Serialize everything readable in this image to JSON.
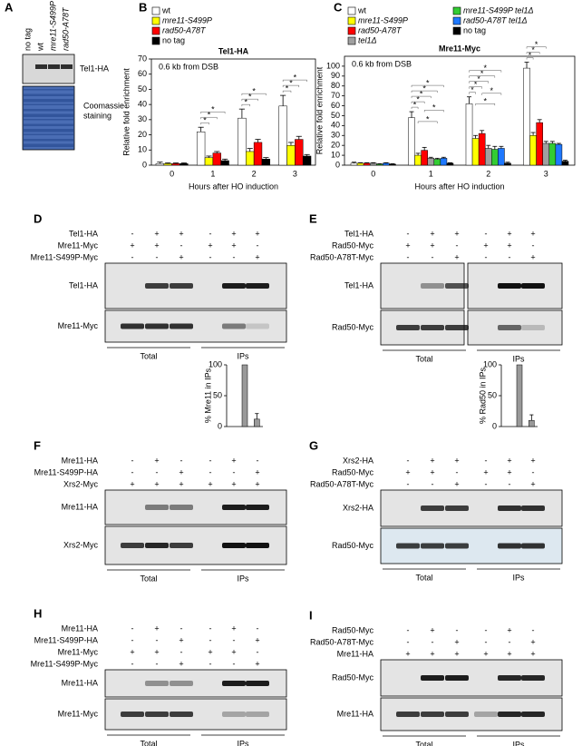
{
  "panel_A": {
    "label": "A",
    "lanes": [
      "no tag",
      "wt",
      "mre11-S499P",
      "rad50-A78T"
    ],
    "blot": "Tel1-HA",
    "stain": [
      "Coomassie",
      "staining"
    ]
  },
  "chart_data": [
    {
      "label": "B",
      "type": "bar",
      "title": "Tel1-HA",
      "annotation": "0.6 kb from DSB",
      "ylabel": "Relative fold enrichment",
      "xlabel": "Hours after HO induction",
      "categories": [
        "0",
        "1",
        "2",
        "3"
      ],
      "ylim": [
        0,
        70
      ],
      "yticks": [
        0,
        10,
        20,
        30,
        40,
        50,
        60,
        70
      ],
      "series": [
        {
          "name": "wt",
          "color": "#ffffff",
          "italic": false,
          "values": [
            1,
            22,
            31,
            39
          ],
          "errors": [
            1,
            3,
            6,
            7
          ]
        },
        {
          "name": "mre11-S499P",
          "color": "#ffff00",
          "italic": true,
          "values": [
            1,
            5,
            9,
            13
          ],
          "errors": [
            0.5,
            1,
            2,
            2
          ]
        },
        {
          "name": "rad50-A78T",
          "color": "#ff0000",
          "italic": true,
          "values": [
            1,
            8,
            15,
            17
          ],
          "errors": [
            0.5,
            1,
            2,
            2
          ]
        },
        {
          "name": "no tag",
          "color": "#000000",
          "italic": false,
          "values": [
            1,
            3,
            4,
            6
          ],
          "errors": [
            0.5,
            1,
            1,
            1
          ]
        }
      ],
      "significance": [
        {
          "category": 1,
          "pair": [
            0,
            1
          ],
          "label": "*"
        },
        {
          "category": 1,
          "pair": [
            0,
            2
          ],
          "label": "*"
        },
        {
          "category": 1,
          "pair": [
            0,
            3
          ],
          "label": "*"
        },
        {
          "category": 2,
          "pair": [
            0,
            1
          ],
          "label": "*"
        },
        {
          "category": 2,
          "pair": [
            0,
            2
          ],
          "label": "*"
        },
        {
          "category": 2,
          "pair": [
            0,
            3
          ],
          "label": "*"
        },
        {
          "category": 3,
          "pair": [
            0,
            1
          ],
          "label": "*"
        },
        {
          "category": 3,
          "pair": [
            0,
            2
          ],
          "label": "*"
        },
        {
          "category": 3,
          "pair": [
            0,
            3
          ],
          "label": "*"
        }
      ]
    },
    {
      "label": "C",
      "type": "bar",
      "title": "Mre11-Myc",
      "annotation": "0.6 kb from DSB",
      "ylabel": "Relative fold enrichment",
      "xlabel": "Hours after HO induction",
      "categories": [
        "0",
        "1",
        "2",
        "3"
      ],
      "ylim": [
        0,
        110
      ],
      "yticks": [
        0,
        10,
        20,
        30,
        40,
        50,
        60,
        70,
        80,
        90,
        100
      ],
      "series": [
        {
          "name": "wt",
          "color": "#ffffff",
          "italic": false,
          "values": [
            2,
            48,
            62,
            98
          ],
          "errors": [
            1,
            6,
            7,
            6
          ]
        },
        {
          "name": "mre11-S499P",
          "color": "#ffff00",
          "italic": true,
          "values": [
            2,
            10,
            27,
            30
          ],
          "errors": [
            0.5,
            2,
            3,
            3
          ]
        },
        {
          "name": "rad50-A78T",
          "color": "#ff0000",
          "italic": true,
          "values": [
            2,
            15,
            32,
            43
          ],
          "errors": [
            0.5,
            3,
            3,
            3
          ]
        },
        {
          "name": "tel1Δ",
          "color": "#a0a0a0",
          "italic": true,
          "values": [
            2,
            7,
            17,
            22
          ],
          "errors": [
            0.5,
            1,
            3,
            2
          ]
        },
        {
          "name": "mre11-S499P tel1Δ",
          "color": "#33cc33",
          "italic": true,
          "values": [
            1,
            6,
            16,
            22
          ],
          "errors": [
            0.5,
            1,
            3,
            2
          ]
        },
        {
          "name": "rad50-A78T tel1Δ",
          "color": "#1e78ff",
          "italic": true,
          "values": [
            2,
            7,
            17,
            21
          ],
          "errors": [
            0.5,
            1,
            2,
            1
          ]
        },
        {
          "name": "no tag",
          "color": "#000000",
          "italic": false,
          "values": [
            1,
            2,
            2,
            4
          ],
          "errors": [
            0.5,
            0.5,
            1,
            1
          ]
        }
      ],
      "significance": [
        {
          "category": 1,
          "pair": [
            0,
            1
          ],
          "label": "*"
        },
        {
          "category": 1,
          "pair": [
            0,
            2
          ],
          "label": "*"
        },
        {
          "category": 1,
          "pair": [
            0,
            3
          ],
          "label": "*"
        },
        {
          "category": 1,
          "pair": [
            0,
            4
          ],
          "label": "*"
        },
        {
          "category": 1,
          "pair": [
            0,
            5
          ],
          "label": "*"
        },
        {
          "category": 1,
          "pair": [
            1,
            4
          ],
          "label": "*"
        },
        {
          "category": 1,
          "pair": [
            2,
            5
          ],
          "label": "*"
        },
        {
          "category": 2,
          "pair": [
            0,
            1
          ],
          "label": "*"
        },
        {
          "category": 2,
          "pair": [
            0,
            2
          ],
          "label": "*"
        },
        {
          "category": 2,
          "pair": [
            0,
            3
          ],
          "label": "*"
        },
        {
          "category": 2,
          "pair": [
            0,
            4
          ],
          "label": "*"
        },
        {
          "category": 2,
          "pair": [
            0,
            5
          ],
          "label": "*"
        },
        {
          "category": 2,
          "pair": [
            1,
            4
          ],
          "label": "*"
        },
        {
          "category": 2,
          "pair": [
            2,
            5
          ],
          "label": "*"
        },
        {
          "category": 3,
          "pair": [
            0,
            1
          ],
          "label": "*"
        },
        {
          "category": 3,
          "pair": [
            0,
            2
          ],
          "label": "*"
        },
        {
          "category": 3,
          "pair": [
            0,
            3
          ],
          "label": "*"
        }
      ]
    },
    {
      "type": "bar",
      "ylabel": "% Mre11 in IPs",
      "categories": [
        null,
        null,
        null
      ],
      "values": [
        0,
        100,
        12
      ],
      "errors": [
        0,
        0,
        9
      ],
      "color": "#999999",
      "ylim": [
        0,
        100
      ],
      "yticks": [
        0,
        50,
        100
      ]
    },
    {
      "type": "bar",
      "ylabel": "% Rad50 in IPs",
      "categories": [
        null,
        null,
        null
      ],
      "values": [
        0,
        100,
        10
      ],
      "errors": [
        0,
        0,
        9
      ],
      "color": "#999999",
      "ylim": [
        0,
        100
      ],
      "yticks": [
        0,
        50,
        100
      ]
    }
  ],
  "blot_panels": [
    {
      "label": "D",
      "conditions": [
        {
          "name": "Tel1-HA",
          "signs": [
            "-",
            "+",
            "+",
            "-",
            "+",
            "+"
          ]
        },
        {
          "name": "Mre11-Myc",
          "signs": [
            "+",
            "+",
            "-",
            "+",
            "+",
            "-"
          ]
        },
        {
          "name": "Mre11-S499P-Myc",
          "signs": [
            "-",
            "-",
            "+",
            "-",
            "-",
            "+"
          ]
        }
      ],
      "blots": [
        "Tel1-HA",
        "Mre11-Myc"
      ],
      "groups": [
        "Total",
        "IPs"
      ]
    },
    {
      "label": "E",
      "conditions": [
        {
          "name": "Tel1-HA",
          "signs": [
            "-",
            "+",
            "+",
            "-",
            "+",
            "+"
          ]
        },
        {
          "name": "Rad50-Myc",
          "signs": [
            "+",
            "+",
            "-",
            "+",
            "+",
            "-"
          ]
        },
        {
          "name": "Rad50-A78T-Myc",
          "signs": [
            "-",
            "-",
            "+",
            "-",
            "-",
            "+"
          ]
        }
      ],
      "blots": [
        "Tel1-HA",
        "Rad50-Myc"
      ],
      "groups": [
        "Total",
        "IPs"
      ]
    },
    {
      "label": "F",
      "conditions": [
        {
          "name": "Mre11-HA",
          "signs": [
            "-",
            "+",
            "-",
            "-",
            "+",
            "-"
          ]
        },
        {
          "name": "Mre11-S499P-HA",
          "signs": [
            "-",
            "-",
            "+",
            "-",
            "-",
            "+"
          ]
        },
        {
          "name": "Xrs2-Myc",
          "signs": [
            "+",
            "+",
            "+",
            "+",
            "+",
            "+"
          ]
        }
      ],
      "blots": [
        "Mre11-HA",
        "Xrs2-Myc"
      ],
      "groups": [
        "Total",
        "IPs"
      ]
    },
    {
      "label": "G",
      "conditions": [
        {
          "name": "Xrs2-HA",
          "signs": [
            "-",
            "+",
            "+",
            "-",
            "+",
            "+"
          ]
        },
        {
          "name": "Rad50-Myc",
          "signs": [
            "+",
            "+",
            "-",
            "+",
            "+",
            "-"
          ]
        },
        {
          "name": "Rad50-A78T-Myc",
          "signs": [
            "-",
            "-",
            "+",
            "-",
            "-",
            "+"
          ]
        }
      ],
      "blots": [
        "Xrs2-HA",
        "Rad50-Myc"
      ],
      "groups": [
        "Total",
        "IPs"
      ]
    },
    {
      "label": "H",
      "conditions": [
        {
          "name": "Mre11-HA",
          "signs": [
            "-",
            "+",
            "-",
            "-",
            "+",
            "-"
          ]
        },
        {
          "name": "Mre11-S499P-HA",
          "signs": [
            "-",
            "-",
            "+",
            "-",
            "-",
            "+"
          ]
        },
        {
          "name": "Mre11-Myc",
          "signs": [
            "+",
            "+",
            "-",
            "+",
            "+",
            "-"
          ]
        },
        {
          "name": "Mre11-S499P-Myc",
          "signs": [
            "-",
            "-",
            "+",
            "-",
            "-",
            "+"
          ]
        }
      ],
      "blots": [
        "Mre11-HA",
        "Mre11-Myc"
      ],
      "groups": [
        "Total",
        "IPs"
      ]
    },
    {
      "label": "I",
      "conditions": [
        {
          "name": "Rad50-Myc",
          "signs": [
            "-",
            "+",
            "-",
            "-",
            "+",
            "-"
          ]
        },
        {
          "name": "Rad50-A78T-Myc",
          "signs": [
            "-",
            "-",
            "+",
            "-",
            "-",
            "+"
          ]
        },
        {
          "name": "Mre11-HA",
          "signs": [
            "+",
            "+",
            "+",
            "+",
            "+",
            "+"
          ]
        }
      ],
      "blots": [
        "Rad50-Myc",
        "Mre11-HA"
      ],
      "groups": [
        "Total",
        "IPs"
      ]
    }
  ]
}
